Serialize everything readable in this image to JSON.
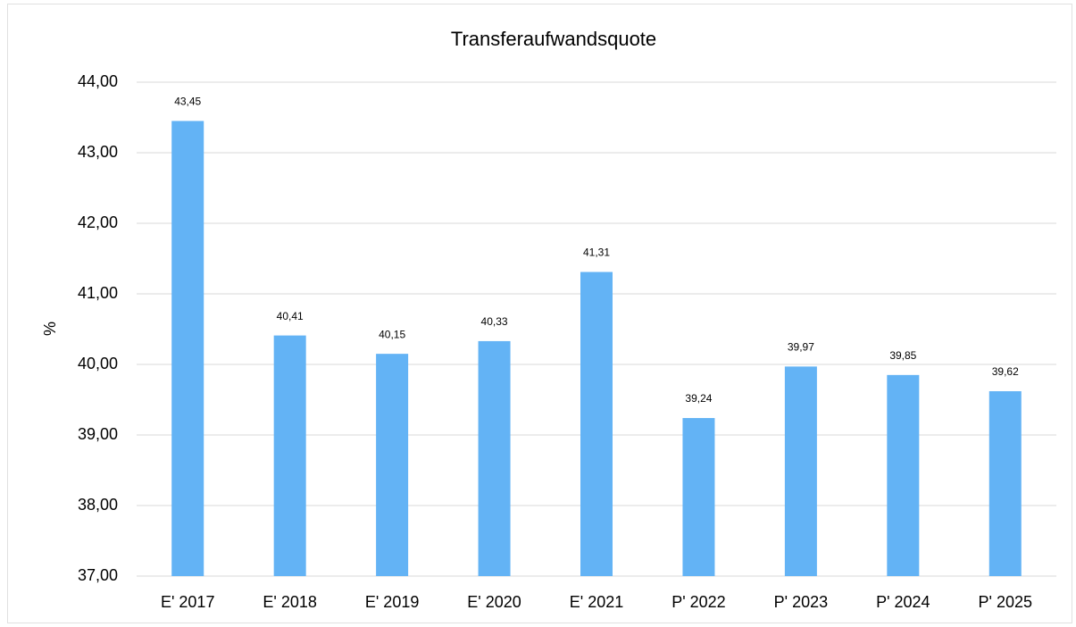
{
  "chart_data": {
    "type": "bar",
    "title": "Transferaufwandsquote",
    "y_label": "%",
    "categories": [
      "E' 2017",
      "E' 2018",
      "E' 2019",
      "E' 2020",
      "E' 2021",
      "P' 2022",
      "P' 2023",
      "P' 2024",
      "P' 2025"
    ],
    "values": [
      43.45,
      40.41,
      40.15,
      40.33,
      41.31,
      39.24,
      39.97,
      39.85,
      39.62
    ],
    "value_labels": [
      "43,45",
      "40,41",
      "40,15",
      "40,33",
      "41,31",
      "39,24",
      "39,97",
      "39,85",
      "39,62"
    ],
    "color": "#63b3f5",
    "ylim": [
      37,
      44
    ],
    "yticks": [
      {
        "value": 37,
        "label": "37,00"
      },
      {
        "value": 38,
        "label": "38,00"
      },
      {
        "value": 39,
        "label": "39,00"
      },
      {
        "value": 40,
        "label": "40,00"
      },
      {
        "value": 41,
        "label": "41,00"
      },
      {
        "value": 42,
        "label": "42,00"
      },
      {
        "value": 43,
        "label": "43,00"
      },
      {
        "value": 44,
        "label": "44,00"
      }
    ],
    "grid": true
  }
}
